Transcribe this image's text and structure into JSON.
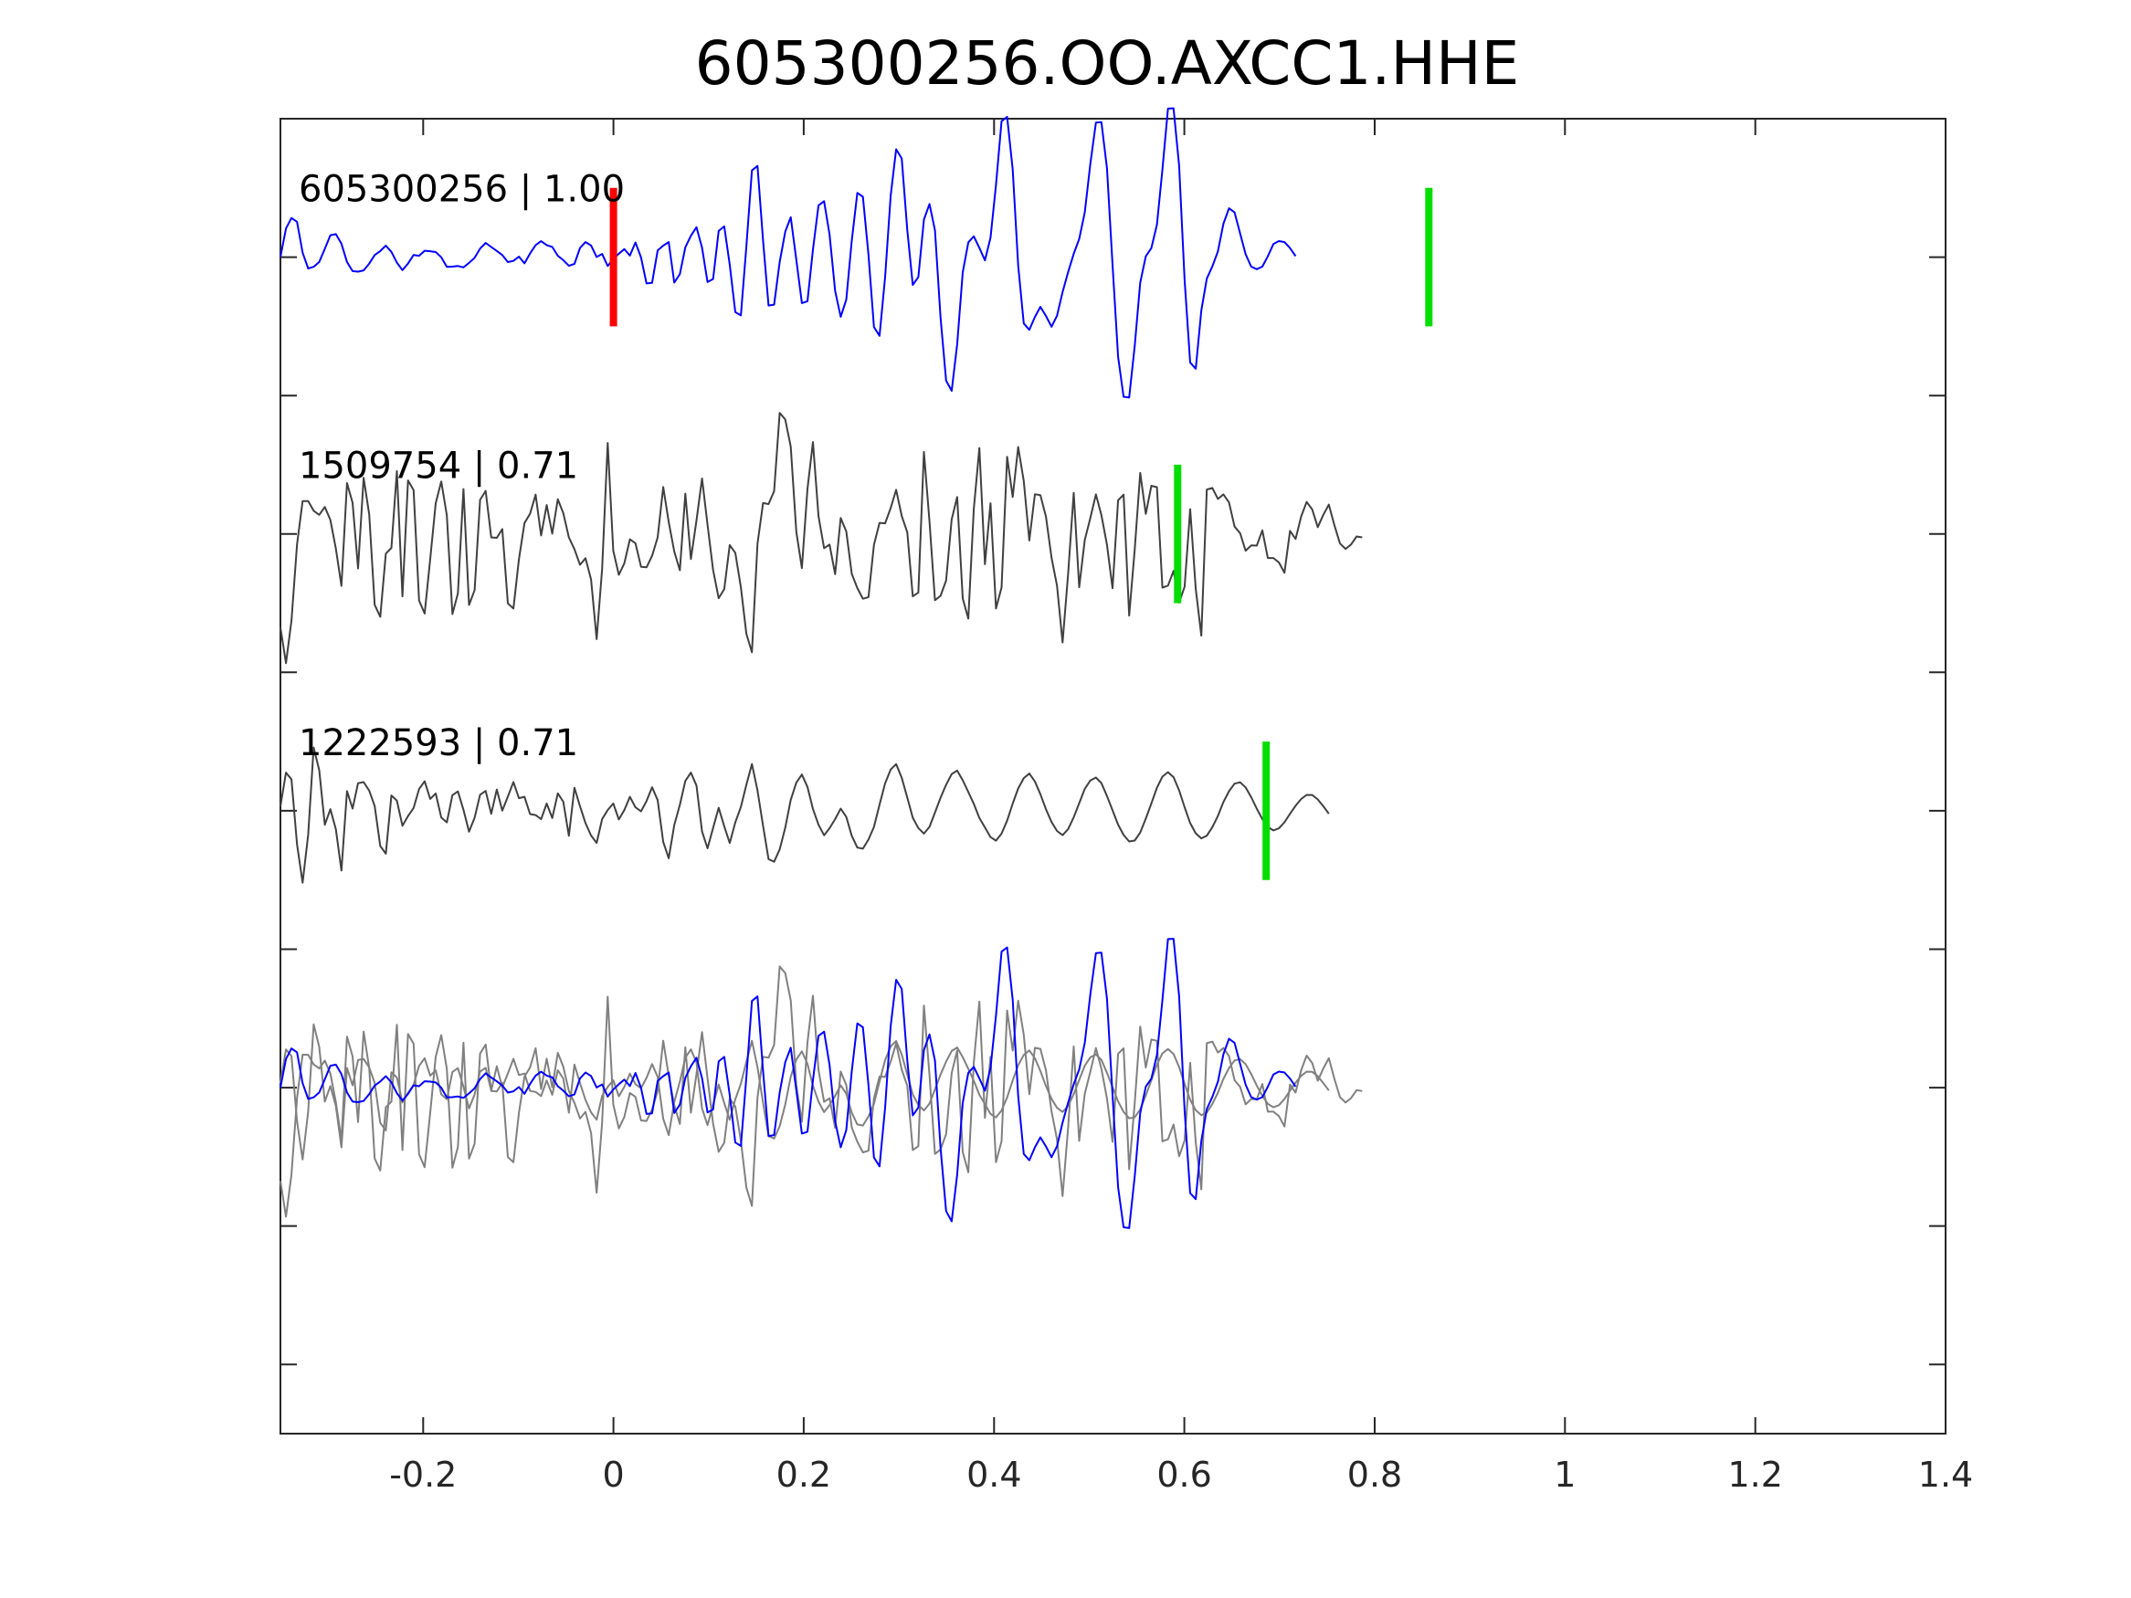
{
  "chart_data": {
    "type": "line",
    "title": "605300256.OO.AXCC1.HHE",
    "xlabel": "",
    "ylabel": "",
    "xlim": [
      -0.35,
      1.4
    ],
    "xticks": [
      "-0.2",
      "0",
      "0.2",
      "0.4",
      "0.6",
      "0.8",
      "1",
      "1.2",
      "1.4"
    ],
    "xtick_values": [
      -0.2,
      0,
      0.2,
      0.4,
      0.6,
      0.8,
      1.0,
      1.2,
      1.4
    ],
    "ylim": [
      -0.5,
      9
    ],
    "yticks": [
      0,
      1,
      2,
      3,
      4,
      5,
      6,
      7,
      8
    ],
    "y_tick_labels_shown": false,
    "grid": false,
    "legend": "none",
    "sample_step": 0.00583,
    "traces": [
      {
        "label": "605300256 | 1.00",
        "offset": 8,
        "color": "#0000ff",
        "samples": [
          0,
          0.207,
          0.283,
          0.255,
          0.032,
          -0.082,
          -0.07,
          -0.035,
          0.06,
          0.158,
          0.166,
          0.097,
          -0.035,
          -0.101,
          -0.105,
          -0.096,
          -0.047,
          0.015,
          0.044,
          0.083,
          0.038,
          -0.04,
          -0.094,
          -0.046,
          0.016,
          0.01,
          0.046,
          0.043,
          0.037,
          -0.001,
          -0.071,
          -0.069,
          -0.064,
          -0.074,
          -0.042,
          -0.005,
          0.062,
          0.103,
          0.073,
          0.045,
          0.015,
          -0.036,
          -0.027,
          0.004,
          -0.045,
          0.026,
          0.087,
          0.115,
          0.087,
          0.074,
          0.01,
          -0.022,
          -0.063,
          -0.049,
          0.066,
          0.109,
          0.084,
          0.001,
          0.023,
          -0.064,
          -0.014,
          0.025,
          0.058,
          0.011,
          0.106,
          -0.002,
          -0.19,
          -0.186,
          0.048,
          0.083,
          0.109,
          -0.184,
          -0.123,
          0.071,
          0.154,
          0.216,
          0.068,
          -0.18,
          -0.158,
          0.189,
          0.222,
          -0.054,
          -0.397,
          -0.421,
          0.075,
          0.626,
          0.659,
          0.12,
          -0.35,
          -0.343,
          -0.035,
          0.184,
          0.288,
          -0.019,
          -0.332,
          -0.319,
          0.053,
          0.374,
          0.404,
          0.163,
          -0.244,
          -0.431,
          -0.307,
          0.118,
          0.464,
          0.436,
          0.018,
          -0.505,
          -0.569,
          -0.146,
          0.443,
          0.779,
          0.713,
          0.195,
          -0.201,
          -0.144,
          0.271,
          0.384,
          0.194,
          -0.436,
          -0.892,
          -0.966,
          -0.63,
          -0.11,
          0.107,
          0.15,
          0.067,
          -0.023,
          0.14,
          0.521,
          0.982,
          1.013,
          0.634,
          -0.061,
          -0.479,
          -0.525,
          -0.432,
          -0.359,
          -0.425,
          -0.503,
          -0.424,
          -0.253,
          -0.108,
          0.024,
          0.131,
          0.323,
          0.674,
          0.972,
          0.975,
          0.643,
          -0.054,
          -0.721,
          -1.009,
          -1.015,
          -0.641,
          -0.185,
          0.006,
          0.065,
          0.235,
          0.632,
          1.073,
          1.075,
          0.66,
          -0.166,
          -0.762,
          -0.806,
          -0.386,
          -0.155,
          -0.067,
          0.043,
          0.241,
          0.353,
          0.323,
          0.171,
          0.021,
          -0.069,
          -0.087,
          -0.069,
          0.006,
          0.095,
          0.116,
          0.109,
          0.065,
          0.007
        ]
      },
      {
        "label": "1509754 | 0.71",
        "offset": 6,
        "color": "#404040",
        "samples": [
          -0.675,
          -0.933,
          -0.627,
          -0.075,
          0.238,
          0.237,
          0.167,
          0.138,
          0.195,
          0.101,
          -0.106,
          -0.375,
          0.368,
          0.225,
          -0.249,
          0.405,
          0.142,
          -0.512,
          -0.599,
          -0.142,
          -0.101,
          0.454,
          -0.451,
          0.387,
          0.317,
          -0.481,
          -0.575,
          -0.181,
          0.222,
          0.379,
          0.134,
          -0.579,
          -0.43,
          0.324,
          -0.513,
          -0.406,
          0.246,
          0.311,
          -0.025,
          -0.028,
          0.035,
          -0.502,
          -0.539,
          -0.184,
          0.079,
          0.146,
          0.284,
          -0.011,
          0.209,
          0.002,
          0.251,
          0.15,
          -0.025,
          -0.11,
          -0.223,
          -0.175,
          -0.329,
          -0.76,
          -0.253,
          0.657,
          -0.121,
          -0.295,
          -0.212,
          -0.039,
          -0.067,
          -0.237,
          -0.241,
          -0.158,
          -0.025,
          0.339,
          0.086,
          -0.127,
          -0.262,
          0.291,
          -0.181,
          0.097,
          0.401,
          0.067,
          -0.261,
          -0.464,
          -0.398,
          -0.08,
          -0.136,
          -0.385,
          -0.721,
          -0.855,
          -0.071,
          0.223,
          0.216,
          0.309,
          0.875,
          0.827,
          0.63,
          0.016,
          -0.247,
          0.325,
          0.664,
          0.128,
          -0.103,
          -0.077,
          -0.291,
          0.116,
          0.018,
          -0.288,
          -0.391,
          -0.468,
          -0.456,
          -0.078,
          0.08,
          0.077,
          0.187,
          0.319,
          0.13,
          0.012,
          -0.451,
          -0.423,
          0.593,
          0.09,
          -0.479,
          -0.447,
          -0.336,
          0.106,
          0.267,
          -0.466,
          -0.612,
          0.18,
          0.621,
          -0.219,
          0.222,
          -0.539,
          -0.387,
          0.557,
          0.267,
          0.628,
          0.382,
          -0.047,
          0.287,
          0.28,
          0.125,
          -0.171,
          -0.373,
          -0.784,
          -0.286,
          0.297,
          -0.385,
          -0.044,
          0.115,
          0.286,
          0.136,
          -0.078,
          -0.392,
          0.244,
          0.284,
          -0.59,
          -0.111,
          0.441,
          0.145,
          0.348,
          0.338,
          -0.388,
          -0.373,
          -0.267,
          -0.496,
          -0.382,
          0.179,
          -0.397,
          -0.735,
          0.321,
          0.332,
          0.253,
          0.286,
          0.228,
          0.053,
          0.005,
          -0.121,
          -0.083,
          -0.084,
          0.026,
          -0.174,
          -0.174,
          -0.206,
          -0.281,
          0.022,
          -0.036,
          0.126,
          0.231,
          0.177,
          0.049,
          0.139,
          0.212,
          0.063,
          -0.069,
          -0.108,
          -0.076,
          -0.018,
          -0.025
        ]
      },
      {
        "label": "1222593 | 0.71",
        "offset": 4,
        "color": "#404040",
        "samples": [
          0.032,
          0.276,
          0.227,
          -0.243,
          -0.519,
          -0.172,
          0.457,
          0.293,
          -0.101,
          0.011,
          -0.133,
          -0.432,
          0.142,
          0.016,
          0.199,
          0.207,
          0.146,
          0.034,
          -0.255,
          -0.31,
          0.111,
          0.073,
          -0.108,
          -0.038,
          0.02,
          0.157,
          0.213,
          0.086,
          0.125,
          -0.049,
          -0.084,
          0.113,
          0.14,
          0.007,
          -0.151,
          -0.05,
          0.116,
          0.143,
          -0.022,
          0.154,
          0.001,
          0.102,
          0.208,
          0.091,
          0.101,
          -0.024,
          -0.031,
          -0.061,
          0.052,
          -0.052,
          0.126,
          0.065,
          -0.181,
          0.166,
          0.032,
          -0.089,
          -0.179,
          -0.232,
          -0.06,
          0.005,
          0.053,
          -0.063,
          0.005,
          0.101,
          0.025,
          -0.004,
          0.07,
          0.17,
          0.077,
          -0.225,
          -0.343,
          -0.103,
          0.043,
          0.216,
          0.276,
          0.182,
          -0.15,
          -0.271,
          -0.124,
          0.022,
          -0.112,
          -0.233,
          -0.084,
          0.028,
          0.187,
          0.338,
          0.147,
          -0.109,
          -0.35,
          -0.368,
          -0.279,
          -0.122,
          0.079,
          0.203,
          0.262,
          0.172,
          0.013,
          -0.101,
          -0.177,
          -0.126,
          -0.06,
          0.016,
          -0.044,
          -0.181,
          -0.266,
          -0.274,
          -0.208,
          -0.117,
          0.044,
          0.198,
          0.298,
          0.337,
          0.239,
          0.095,
          -0.05,
          -0.125,
          -0.165,
          -0.116,
          -0.013,
          0.094,
          0.188,
          0.265,
          0.29,
          0.22,
          0.136,
          0.05,
          -0.052,
          -0.12,
          -0.19,
          -0.216,
          -0.165,
          -0.071,
          0.052,
          0.161,
          0.236,
          0.269,
          0.212,
          0.12,
          0.011,
          -0.081,
          -0.146,
          -0.176,
          -0.132,
          -0.047,
          0.055,
          0.158,
          0.219,
          0.24,
          0.2,
          0.107,
          0.003,
          -0.1,
          -0.175,
          -0.222,
          -0.215,
          -0.157,
          -0.057,
          0.053,
          0.166,
          0.247,
          0.279,
          0.243,
          0.148,
          0.026,
          -0.089,
          -0.163,
          -0.199,
          -0.18,
          -0.118,
          -0.036,
          0.063,
          0.141,
          0.196,
          0.206,
          0.169,
          0.098,
          0.015,
          -0.06,
          -0.117,
          -0.142,
          -0.127,
          -0.083,
          -0.022,
          0.036,
          0.085,
          0.115,
          0.114,
          0.082,
          0.032,
          -0.021
        ]
      }
    ],
    "stack_offset": 2,
    "overlay_color": "#808080",
    "picks": [
      {
        "trace": 0,
        "x": 0.0,
        "color": "#ff0000"
      },
      {
        "trace": 0,
        "x": 0.857,
        "color": "#00dd00"
      },
      {
        "trace": 1,
        "x": 0.593,
        "color": "#00dd00"
      },
      {
        "trace": 2,
        "x": 0.686,
        "color": "#00dd00"
      }
    ]
  }
}
